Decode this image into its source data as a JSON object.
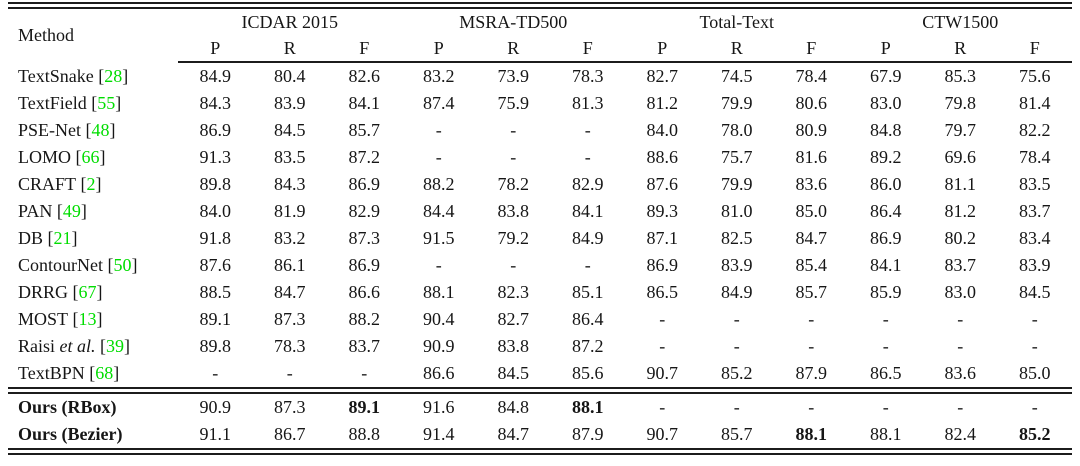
{
  "table": {
    "method_header": "Method",
    "groups": [
      {
        "label": "ICDAR 2015"
      },
      {
        "label": "MSRA-TD500"
      },
      {
        "label": "Total-Text"
      },
      {
        "label": "CTW1500"
      }
    ],
    "sub_headers": [
      "P",
      "R",
      "F"
    ],
    "colors": {
      "text": "#161616",
      "citation": "#00dd00",
      "rule": "#1c1c1c",
      "background": "#ffffff"
    },
    "rows": [
      {
        "method": "TextSnake",
        "italic": "",
        "cite": "28",
        "values": [
          "84.9",
          "80.4",
          "82.6",
          "83.2",
          "73.9",
          "78.3",
          "82.7",
          "74.5",
          "78.4",
          "67.9",
          "85.3",
          "75.6"
        ],
        "bold": []
      },
      {
        "method": "TextField",
        "italic": "",
        "cite": "55",
        "values": [
          "84.3",
          "83.9",
          "84.1",
          "87.4",
          "75.9",
          "81.3",
          "81.2",
          "79.9",
          "80.6",
          "83.0",
          "79.8",
          "81.4"
        ],
        "bold": []
      },
      {
        "method": "PSE-Net",
        "italic": "",
        "cite": "48",
        "values": [
          "86.9",
          "84.5",
          "85.7",
          "-",
          "-",
          "-",
          "84.0",
          "78.0",
          "80.9",
          "84.8",
          "79.7",
          "82.2"
        ],
        "bold": []
      },
      {
        "method": "LOMO",
        "italic": "",
        "cite": "66",
        "values": [
          "91.3",
          "83.5",
          "87.2",
          "-",
          "-",
          "-",
          "88.6",
          "75.7",
          "81.6",
          "89.2",
          "69.6",
          "78.4"
        ],
        "bold": []
      },
      {
        "method": "CRAFT",
        "italic": "",
        "cite": "2",
        "values": [
          "89.8",
          "84.3",
          "86.9",
          "88.2",
          "78.2",
          "82.9",
          "87.6",
          "79.9",
          "83.6",
          "86.0",
          "81.1",
          "83.5"
        ],
        "bold": []
      },
      {
        "method": "PAN",
        "italic": "",
        "cite": "49",
        "values": [
          "84.0",
          "81.9",
          "82.9",
          "84.4",
          "83.8",
          "84.1",
          "89.3",
          "81.0",
          "85.0",
          "86.4",
          "81.2",
          "83.7"
        ],
        "bold": []
      },
      {
        "method": "DB",
        "italic": "",
        "cite": "21",
        "values": [
          "91.8",
          "83.2",
          "87.3",
          "91.5",
          "79.2",
          "84.9",
          "87.1",
          "82.5",
          "84.7",
          "86.9",
          "80.2",
          "83.4"
        ],
        "bold": []
      },
      {
        "method": "ContourNet",
        "italic": "",
        "cite": "50",
        "values": [
          "87.6",
          "86.1",
          "86.9",
          "-",
          "-",
          "-",
          "86.9",
          "83.9",
          "85.4",
          "84.1",
          "83.7",
          "83.9"
        ],
        "bold": []
      },
      {
        "method": "DRRG",
        "italic": "",
        "cite": "67",
        "values": [
          "88.5",
          "84.7",
          "86.6",
          "88.1",
          "82.3",
          "85.1",
          "86.5",
          "84.9",
          "85.7",
          "85.9",
          "83.0",
          "84.5"
        ],
        "bold": []
      },
      {
        "method": "MOST",
        "italic": "",
        "cite": "13",
        "values": [
          "89.1",
          "87.3",
          "88.2",
          "90.4",
          "82.7",
          "86.4",
          "-",
          "-",
          "-",
          "-",
          "-",
          "-"
        ],
        "bold": []
      },
      {
        "method": "Raisi",
        "italic": "et al.",
        "cite": "39",
        "values": [
          "89.8",
          "78.3",
          "83.7",
          "90.9",
          "83.8",
          "87.2",
          "-",
          "-",
          "-",
          "-",
          "-",
          "-"
        ],
        "bold": []
      },
      {
        "method": "TextBPN",
        "italic": "",
        "cite": "68",
        "values": [
          "-",
          "-",
          "-",
          "86.6",
          "84.5",
          "85.6",
          "90.7",
          "85.2",
          "87.9",
          "86.5",
          "83.6",
          "85.0"
        ],
        "bold": []
      }
    ],
    "ours_rows": [
      {
        "method": "Ours (RBox)",
        "italic": "",
        "cite": "",
        "values": [
          "90.9",
          "87.3",
          "89.1",
          "91.6",
          "84.8",
          "88.1",
          "-",
          "-",
          "-",
          "-",
          "-",
          "-"
        ],
        "bold": [
          2,
          5
        ]
      },
      {
        "method": "Ours (Bezier)",
        "italic": "",
        "cite": "",
        "values": [
          "91.1",
          "86.7",
          "88.8",
          "91.4",
          "84.7",
          "87.9",
          "90.7",
          "85.7",
          "88.1",
          "88.1",
          "82.4",
          "85.2"
        ],
        "bold": [
          8,
          11
        ]
      }
    ]
  }
}
